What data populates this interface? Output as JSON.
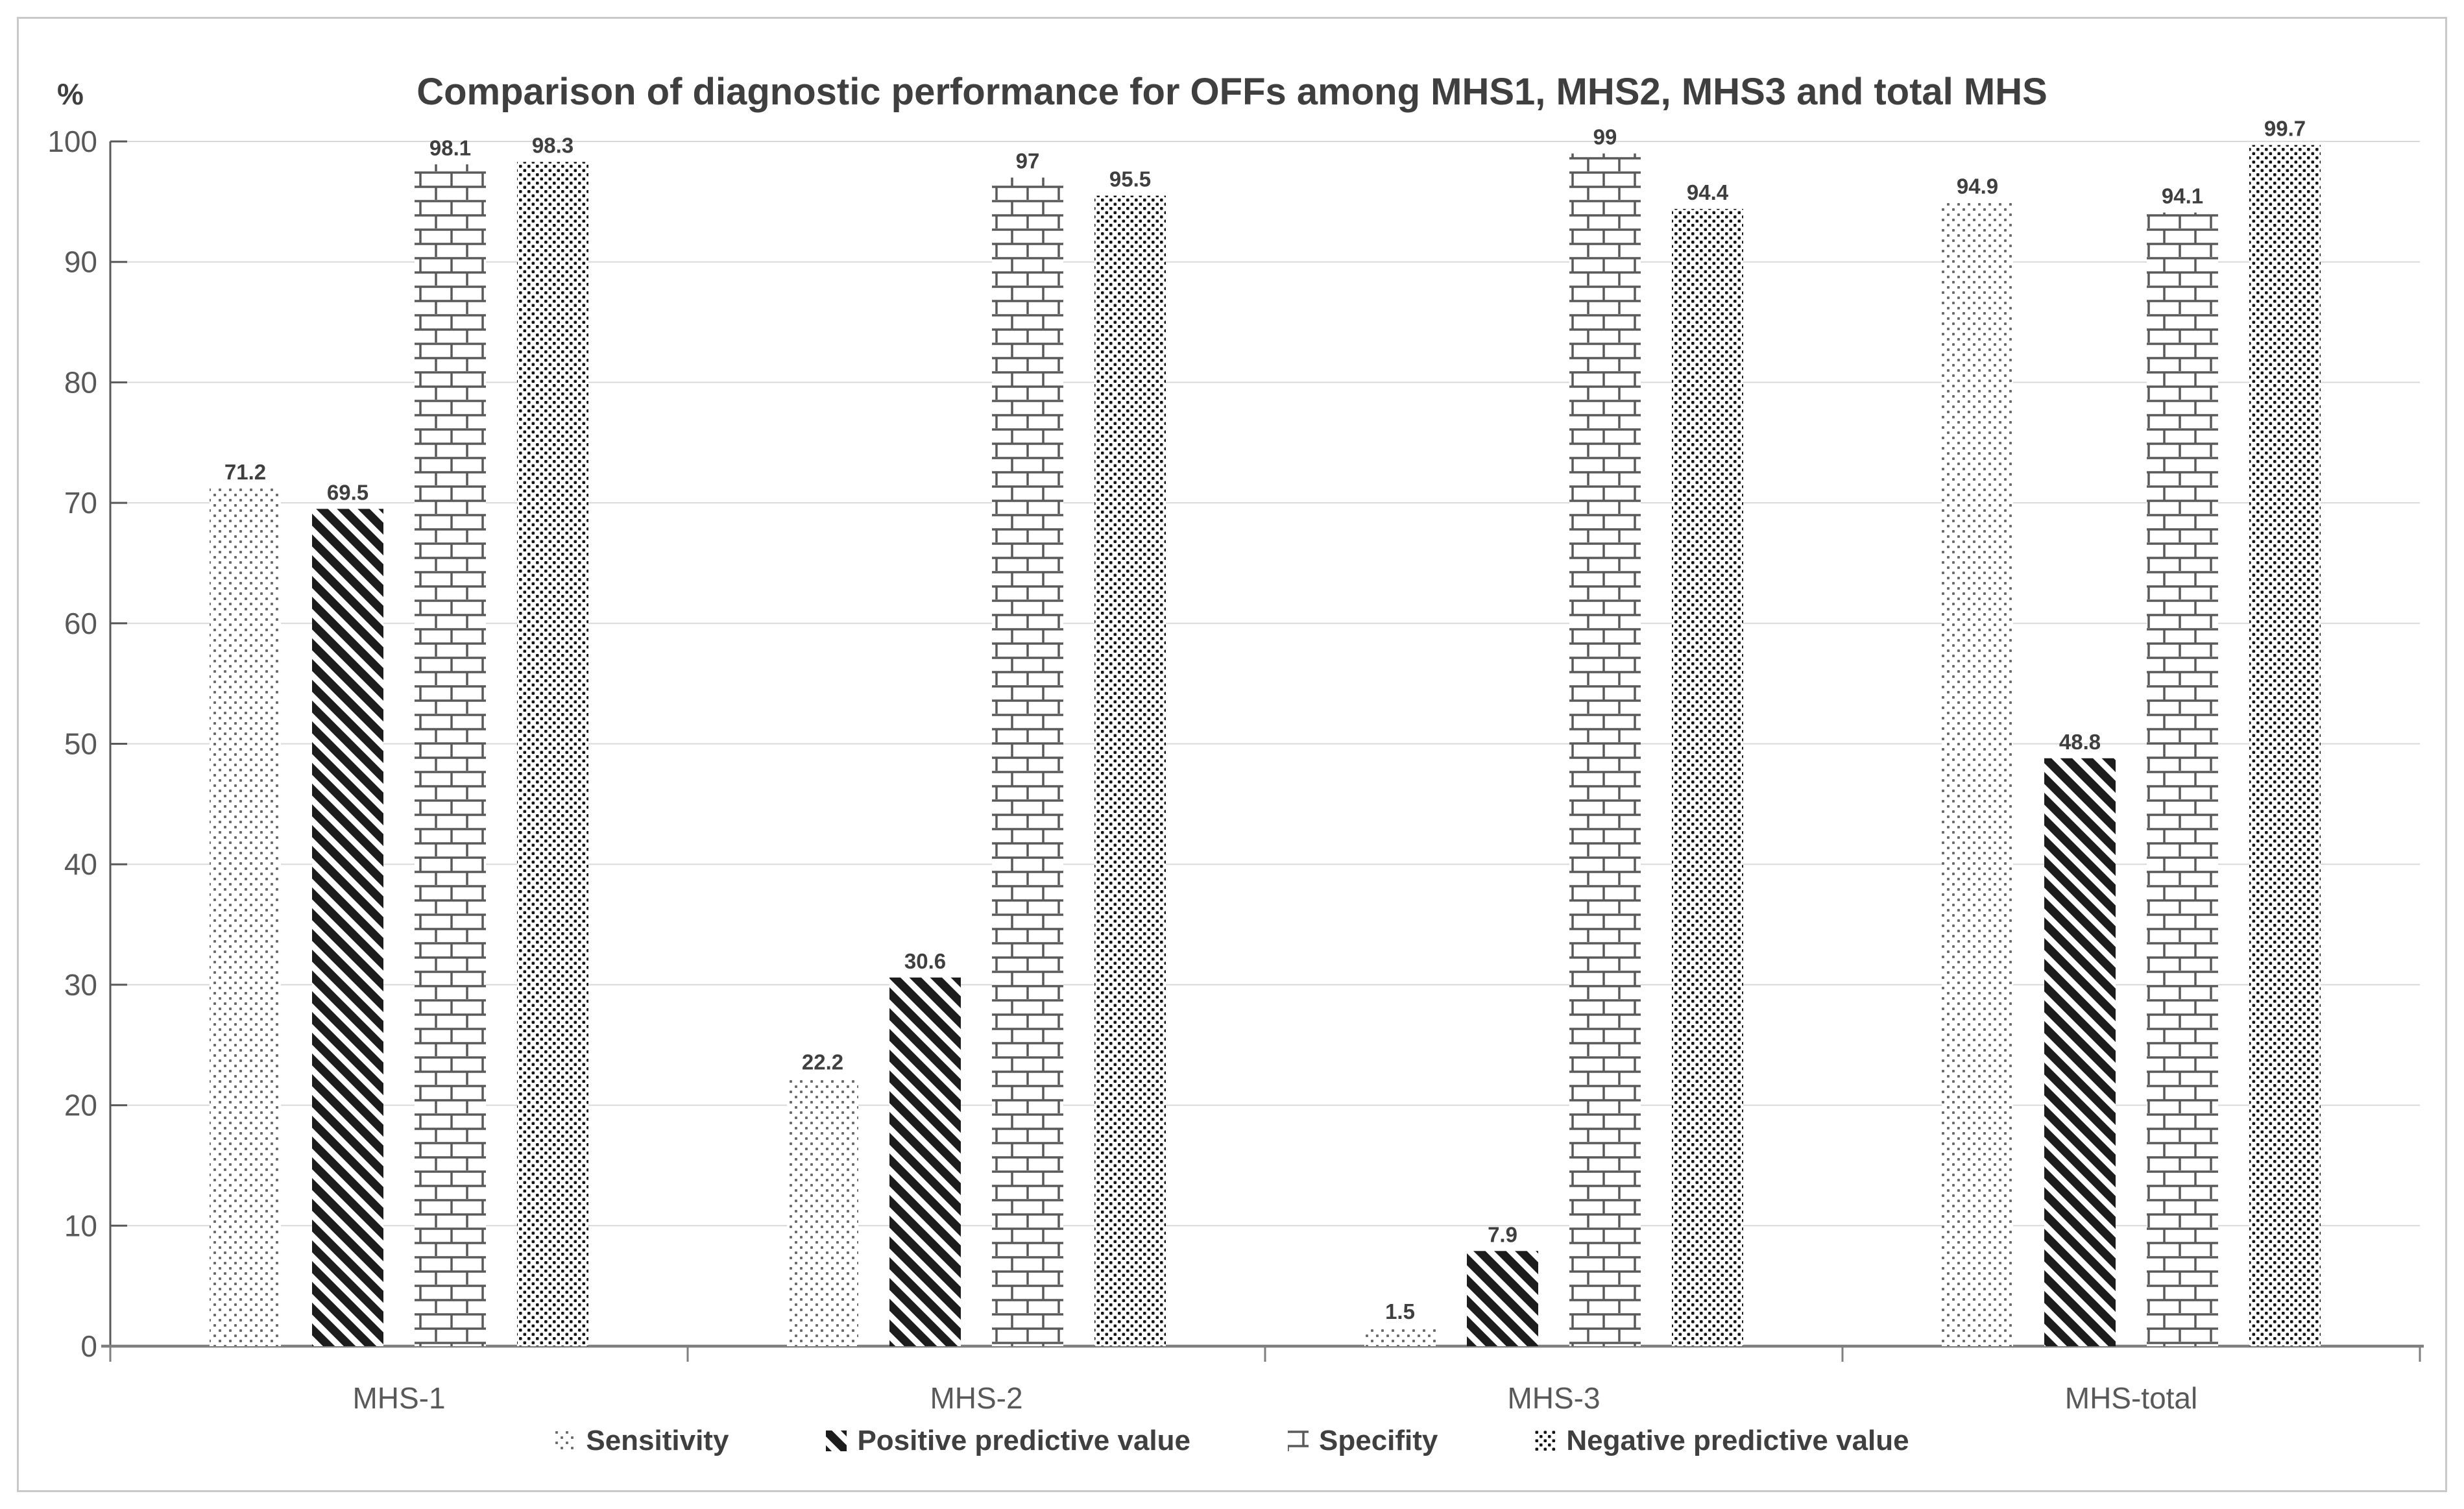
{
  "chart_data": {
    "type": "bar",
    "title": "Comparison of diagnostic performance for OFFs among MHS1, MHS2, MHS3 and total MHS",
    "y_axis_unit_label": "%",
    "categories": [
      "MHS-1",
      "MHS-2",
      "MHS-3",
      "MHS-total"
    ],
    "series": [
      {
        "name": "Sensitivity",
        "pattern": "dots",
        "values": [
          71.2,
          22.2,
          1.5,
          94.9
        ],
        "labels": [
          "71.2",
          "22.2",
          "1.5",
          "94.9"
        ]
      },
      {
        "name": "Positive predictive value",
        "pattern": "diagonal-stripes",
        "values": [
          69.5,
          30.6,
          7.9,
          48.8
        ],
        "labels": [
          "69.5",
          "30.6",
          "7.9",
          "48.8"
        ]
      },
      {
        "name": "Specifity",
        "pattern": "bricks",
        "values": [
          98.1,
          97,
          99,
          94.1
        ],
        "labels": [
          "98.1",
          "97",
          "99",
          "94.1"
        ]
      },
      {
        "name": "Negative predictive value",
        "pattern": "checker-dots",
        "values": [
          98.3,
          95.5,
          94.4,
          99.7
        ],
        "labels": [
          "98.3",
          "95.5",
          "94.4",
          "99.7"
        ]
      }
    ],
    "ylim": [
      0,
      100
    ],
    "y_ticks": [
      0,
      10,
      20,
      30,
      40,
      50,
      60,
      70,
      80,
      90,
      100
    ],
    "grid": true,
    "legend_position": "bottom"
  },
  "colors": {
    "title_text": "#3f3f3f",
    "tick_text": "#595959",
    "data_label_text": "#3f3f3f",
    "gridline": "#d9d9d9",
    "x_axis_line": "#7f7f7f",
    "y_axis_line": "#595959",
    "pattern_ink": "#1c1c1c",
    "brick_line": "#5a5a5a",
    "dot_gray": "#6e6e6e",
    "frame_border": "#c9c9c9"
  }
}
